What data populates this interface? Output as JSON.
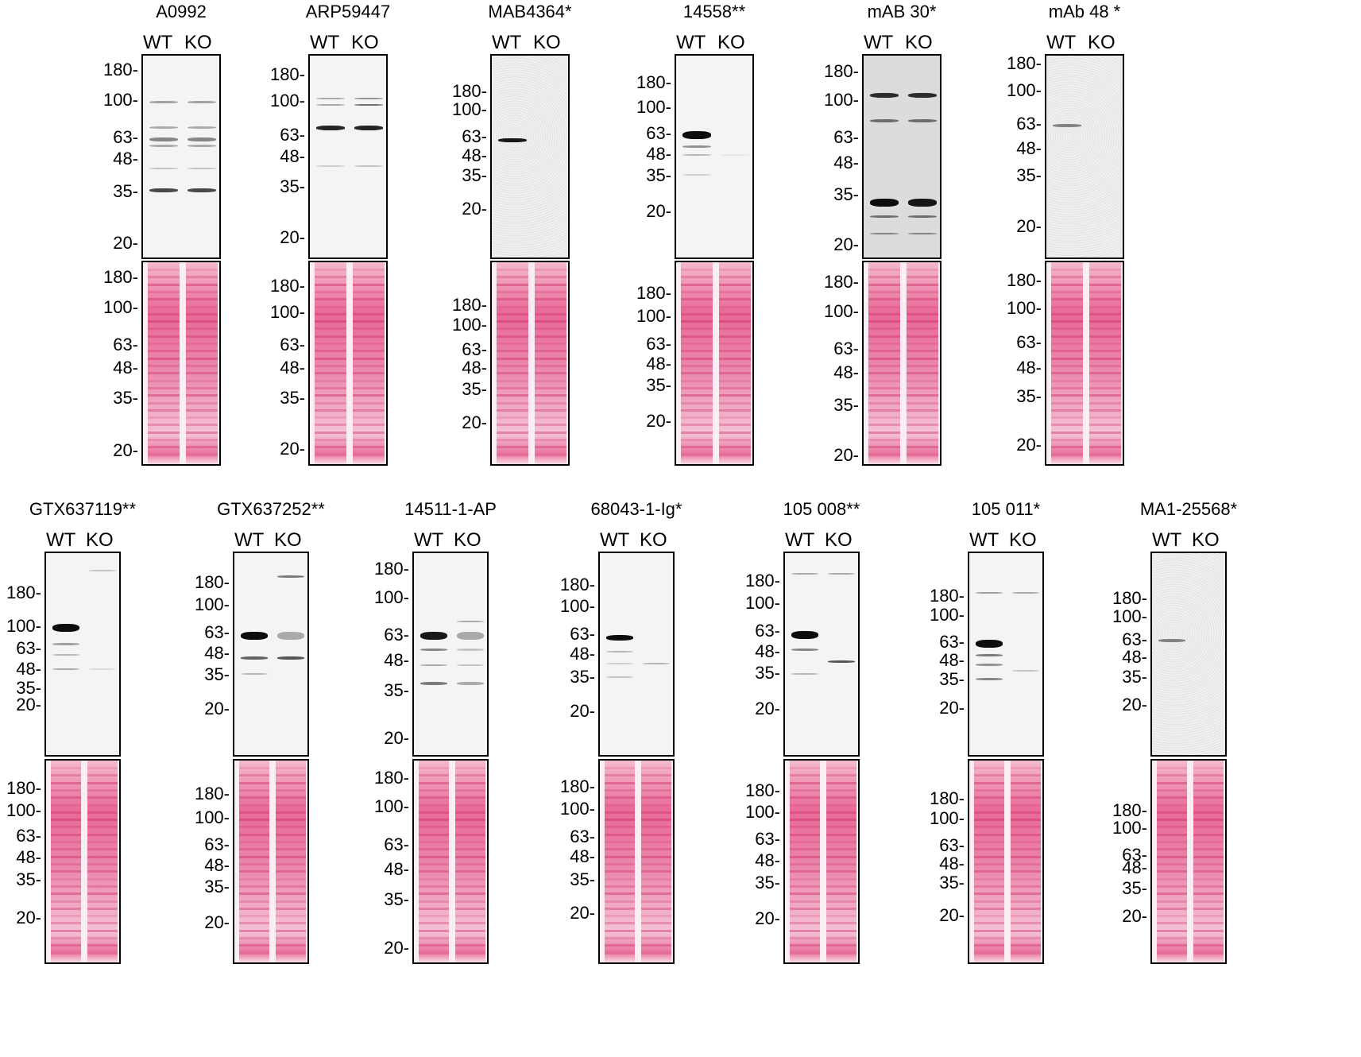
{
  "figure": {
    "lane_labels": [
      "WT",
      "KO"
    ],
    "panels": [
      {
        "title": "A0992",
        "blot_ticks": [
          "180",
          "100",
          "63",
          "48",
          "35",
          "20"
        ],
        "ponceau_ticks": [
          "180",
          "100",
          "63",
          "48",
          "35",
          "20"
        ],
        "style": "clean"
      },
      {
        "title": "ARP59447",
        "blot_ticks": [
          "180",
          "100",
          "63",
          "48",
          "35",
          "20"
        ],
        "ponceau_ticks": [
          "180",
          "100",
          "63",
          "48",
          "35",
          "20"
        ],
        "style": "clean"
      },
      {
        "title": "MAB4364*",
        "blot_ticks": [
          "180",
          "100",
          "63",
          "48",
          "35",
          "20"
        ],
        "ponceau_ticks": [
          "180",
          "100",
          "63",
          "48",
          "35",
          "20"
        ],
        "style": "grainy"
      },
      {
        "title": "14558**",
        "blot_ticks": [
          "180",
          "100",
          "63",
          "48",
          "35",
          "20"
        ],
        "ponceau_ticks": [
          "180",
          "100",
          "63",
          "48",
          "35",
          "20"
        ],
        "style": "clean"
      },
      {
        "title": "mAB 30*",
        "blot_ticks": [
          "180",
          "100",
          "63",
          "48",
          "35",
          "20"
        ],
        "ponceau_ticks": [
          "180",
          "100",
          "63",
          "48",
          "35",
          "20"
        ],
        "style": "dark"
      },
      {
        "title": "mAb 48 *",
        "blot_ticks": [
          "180",
          "100",
          "63",
          "48",
          "35",
          "20"
        ],
        "ponceau_ticks": [
          "180",
          "100",
          "63",
          "48",
          "35",
          "20"
        ],
        "style": "grainy"
      },
      {
        "title": "GTX637119**",
        "blot_ticks": [
          "180",
          "100",
          "63",
          "48",
          "35",
          "20"
        ],
        "ponceau_ticks": [
          "180",
          "100",
          "63",
          "48",
          "35",
          "20"
        ],
        "style": "clean"
      },
      {
        "title": "GTX637252**",
        "blot_ticks": [
          "180",
          "100",
          "63",
          "48",
          "35",
          "20"
        ],
        "ponceau_ticks": [
          "180",
          "100",
          "63",
          "48",
          "35",
          "20"
        ],
        "style": "clean"
      },
      {
        "title": "14511-1-AP",
        "blot_ticks": [
          "180",
          "100",
          "63",
          "48",
          "35",
          "20"
        ],
        "ponceau_ticks": [
          "180",
          "100",
          "63",
          "48",
          "35",
          "20"
        ],
        "style": "clean"
      },
      {
        "title": "68043-1-Ig*",
        "blot_ticks": [
          "180",
          "100",
          "63",
          "48",
          "35",
          "20"
        ],
        "ponceau_ticks": [
          "180",
          "100",
          "63",
          "48",
          "35",
          "20"
        ],
        "style": "clean"
      },
      {
        "title": "105 008**",
        "blot_ticks": [
          "180",
          "100",
          "63",
          "48",
          "35",
          "20"
        ],
        "ponceau_ticks": [
          "180",
          "100",
          "63",
          "48",
          "35",
          "20"
        ],
        "style": "clean"
      },
      {
        "title": "105 011*",
        "blot_ticks": [
          "180",
          "100",
          "63",
          "48",
          "35",
          "20"
        ],
        "ponceau_ticks": [
          "180",
          "100",
          "63",
          "48",
          "35",
          "20"
        ],
        "style": "clean"
      },
      {
        "title": "MA1-25568*",
        "blot_ticks": [
          "180",
          "100",
          "63",
          "48",
          "35",
          "20"
        ],
        "ponceau_ticks": [
          "180",
          "100",
          "63",
          "48",
          "35",
          "20"
        ],
        "style": "grainy"
      }
    ]
  }
}
